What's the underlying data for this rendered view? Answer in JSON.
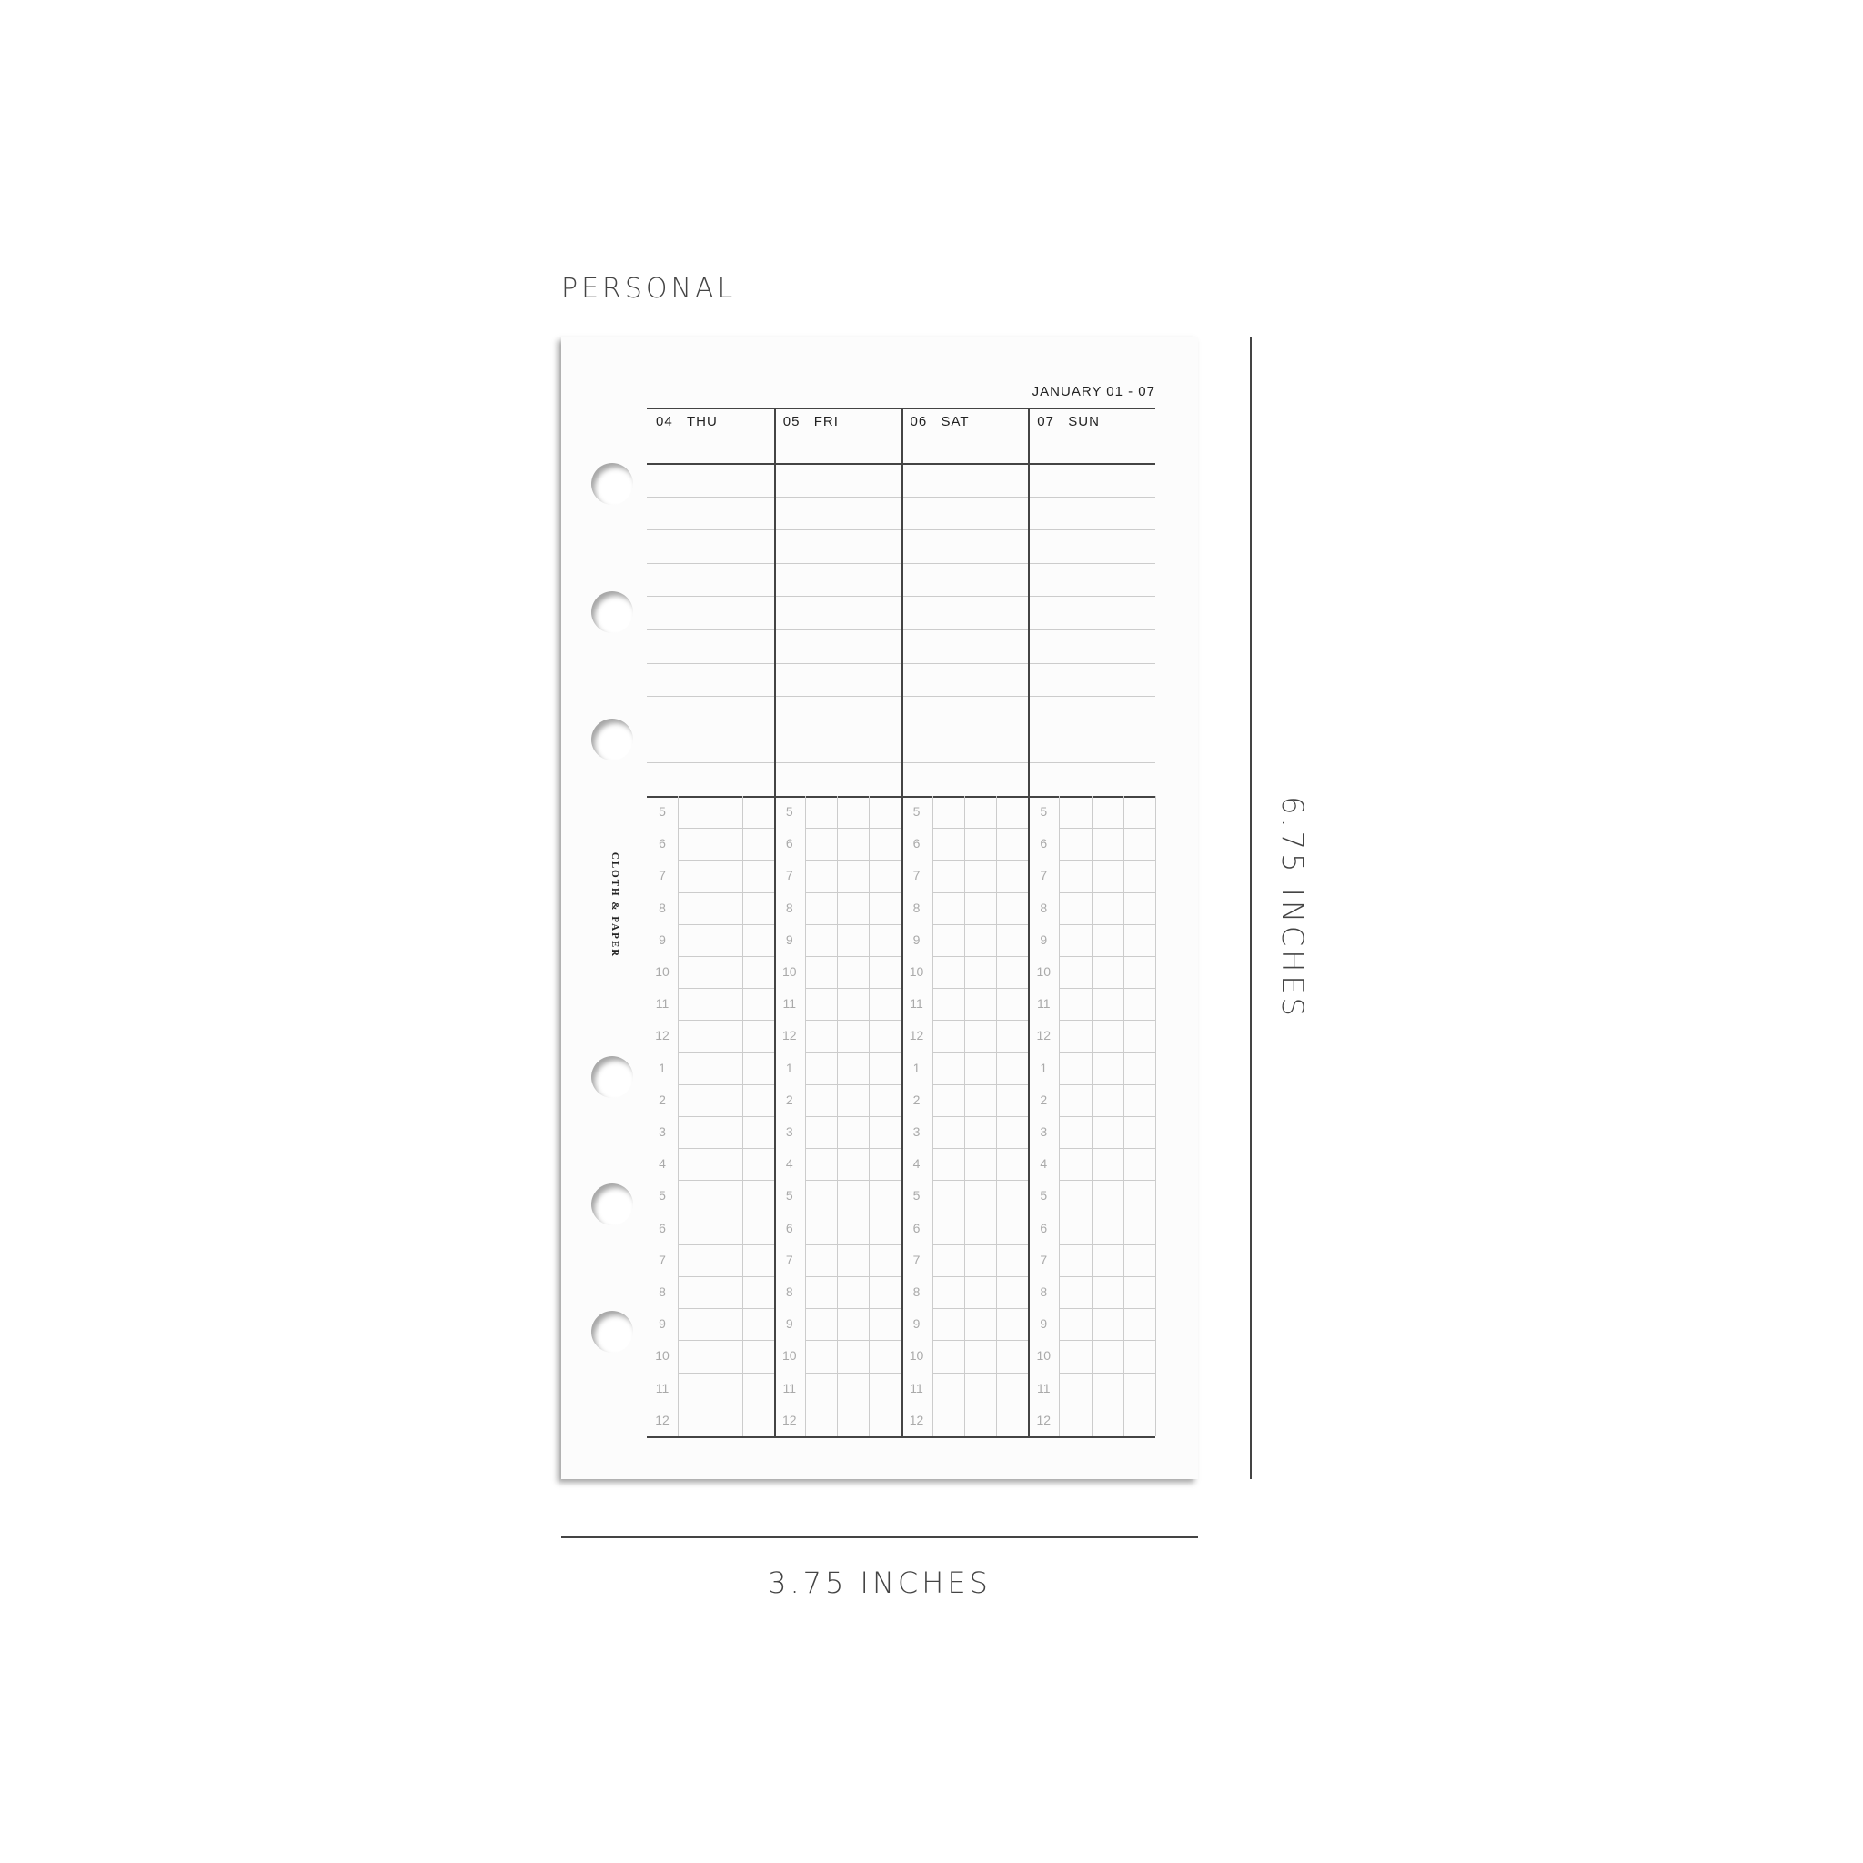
{
  "size_label": "PERSONAL",
  "brand": "CLOTH & PAPER",
  "date_range": "JANUARY 01 - 07",
  "days": [
    {
      "num": "04",
      "name": "THU"
    },
    {
      "num": "05",
      "name": "FRI"
    },
    {
      "num": "06",
      "name": "SAT"
    },
    {
      "num": "07",
      "name": "SUN"
    }
  ],
  "hours": [
    "5",
    "6",
    "7",
    "8",
    "9",
    "10",
    "11",
    "12",
    "1",
    "2",
    "3",
    "4",
    "5",
    "6",
    "7",
    "8",
    "9",
    "10",
    "11",
    "12"
  ],
  "dimensions": {
    "height": "6.75 INCHES",
    "width": "3.75 INCHES"
  },
  "colors": {
    "ink": "#444444",
    "grid": "#cccccc",
    "hour_text": "#aaaaaa"
  }
}
